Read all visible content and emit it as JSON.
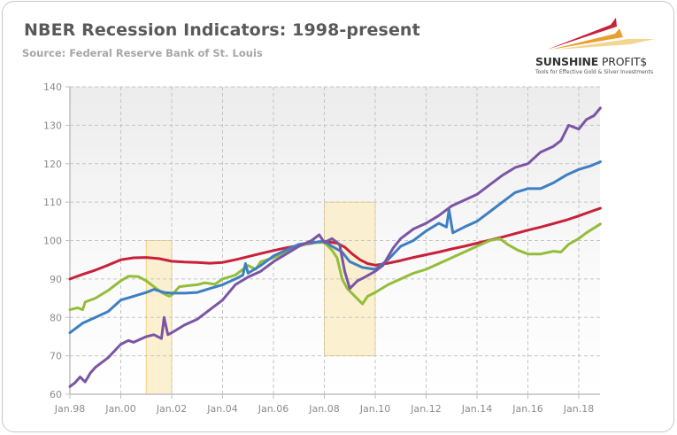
{
  "header": {
    "title": "NBER Recession Indicators: 1998-present",
    "subtitle": "Source: Federal Reserve Bank of St. Louis"
  },
  "logo": {
    "name_bold": "SUNSHINE",
    "name_light": " PROFIT$",
    "tagline": "Tools for Effective Gold & Silver Investments",
    "colors": [
      "#c8213a",
      "#e8a030",
      "#f0c870"
    ]
  },
  "chart_data": {
    "type": "line",
    "title": "NBER Recession Indicators: 1998-present",
    "xlabel": "",
    "ylabel": "",
    "ylim": [
      60,
      140
    ],
    "xlim": [
      1998.0,
      2018.85
    ],
    "yticks": [
      60,
      70,
      80,
      90,
      100,
      110,
      120,
      130,
      140
    ],
    "xticks": [
      {
        "year": 1998,
        "label": "Jan.98"
      },
      {
        "year": 2000,
        "label": "Jan.00"
      },
      {
        "year": 2002,
        "label": "Jan.02"
      },
      {
        "year": 2004,
        "label": "Jan.04"
      },
      {
        "year": 2006,
        "label": "Jan.06"
      },
      {
        "year": 2008,
        "label": "Jan.08"
      },
      {
        "year": 2010,
        "label": "Jan.10"
      },
      {
        "year": 2012,
        "label": "Jan.12"
      },
      {
        "year": 2014,
        "label": "Jan.14"
      },
      {
        "year": 2016,
        "label": "Jan.16"
      },
      {
        "year": 2018,
        "label": "Jan.18"
      }
    ],
    "grid": true,
    "legend": "none",
    "recession_shading": [
      {
        "x0": 2001.0,
        "x1": 2002.0,
        "y0": 60,
        "y1": 100,
        "color": "#fbefcc"
      },
      {
        "x0": 2008.0,
        "x1": 2010.0,
        "y0": 70,
        "y1": 110,
        "color": "#fbefcc"
      }
    ],
    "series": [
      {
        "name": "red",
        "color": "#c8213a",
        "points": [
          [
            1998.0,
            90.0
          ],
          [
            1998.5,
            91.2
          ],
          [
            1999.0,
            92.3
          ],
          [
            1999.5,
            93.6
          ],
          [
            2000.0,
            95.0
          ],
          [
            2000.5,
            95.5
          ],
          [
            2001.0,
            95.6
          ],
          [
            2001.5,
            95.3
          ],
          [
            2002.0,
            94.6
          ],
          [
            2002.5,
            94.4
          ],
          [
            2003.0,
            94.3
          ],
          [
            2003.5,
            94.1
          ],
          [
            2004.0,
            94.3
          ],
          [
            2004.5,
            95.0
          ],
          [
            2005.0,
            95.8
          ],
          [
            2005.5,
            96.6
          ],
          [
            2006.0,
            97.4
          ],
          [
            2006.5,
            98.1
          ],
          [
            2007.0,
            98.7
          ],
          [
            2007.5,
            99.3
          ],
          [
            2008.0,
            99.8
          ],
          [
            2008.5,
            99.3
          ],
          [
            2008.8,
            98.3
          ],
          [
            2009.1,
            96.5
          ],
          [
            2009.4,
            95.0
          ],
          [
            2009.7,
            94.0
          ],
          [
            2010.0,
            93.6
          ],
          [
            2010.5,
            94.1
          ],
          [
            2011.0,
            94.8
          ],
          [
            2011.5,
            95.6
          ],
          [
            2012.0,
            96.3
          ],
          [
            2012.5,
            97.0
          ],
          [
            2013.0,
            97.8
          ],
          [
            2013.5,
            98.5
          ],
          [
            2014.0,
            99.3
          ],
          [
            2014.5,
            100.1
          ],
          [
            2015.0,
            100.9
          ],
          [
            2015.5,
            101.8
          ],
          [
            2016.0,
            102.7
          ],
          [
            2016.5,
            103.5
          ],
          [
            2017.0,
            104.4
          ],
          [
            2017.5,
            105.3
          ],
          [
            2018.0,
            106.4
          ],
          [
            2018.5,
            107.6
          ],
          [
            2018.85,
            108.4
          ]
        ]
      },
      {
        "name": "green",
        "color": "#93bd3a",
        "points": [
          [
            1998.0,
            82.0
          ],
          [
            1998.3,
            82.5
          ],
          [
            1998.5,
            82.0
          ],
          [
            1998.6,
            84.0
          ],
          [
            1999.0,
            85.0
          ],
          [
            1999.5,
            87.0
          ],
          [
            2000.0,
            89.5
          ],
          [
            2000.3,
            90.7
          ],
          [
            2000.7,
            90.6
          ],
          [
            2001.0,
            89.5
          ],
          [
            2001.3,
            88.0
          ],
          [
            2001.6,
            86.5
          ],
          [
            2001.9,
            85.5
          ],
          [
            2002.0,
            85.8
          ],
          [
            2002.3,
            88.0
          ],
          [
            2002.7,
            88.3
          ],
          [
            2003.0,
            88.5
          ],
          [
            2003.3,
            89.0
          ],
          [
            2003.7,
            88.6
          ],
          [
            2004.0,
            90.0
          ],
          [
            2004.5,
            91.0
          ],
          [
            2004.8,
            92.5
          ],
          [
            2005.0,
            93.5
          ],
          [
            2005.3,
            92.5
          ],
          [
            2005.5,
            94.5
          ],
          [
            2006.0,
            95.5
          ],
          [
            2006.5,
            97.0
          ],
          [
            2007.0,
            98.5
          ],
          [
            2007.5,
            99.5
          ],
          [
            2008.0,
            99.5
          ],
          [
            2008.3,
            97.5
          ],
          [
            2008.5,
            95.5
          ],
          [
            2008.7,
            90.0
          ],
          [
            2008.9,
            87.5
          ],
          [
            2009.2,
            85.5
          ],
          [
            2009.5,
            83.5
          ],
          [
            2009.7,
            85.5
          ],
          [
            2010.0,
            86.5
          ],
          [
            2010.5,
            88.5
          ],
          [
            2011.0,
            90.0
          ],
          [
            2011.5,
            91.5
          ],
          [
            2012.0,
            92.5
          ],
          [
            2012.5,
            94.0
          ],
          [
            2013.0,
            95.5
          ],
          [
            2013.5,
            97.0
          ],
          [
            2014.0,
            98.5
          ],
          [
            2014.5,
            100.0
          ],
          [
            2014.9,
            100.5
          ],
          [
            2015.2,
            99.0
          ],
          [
            2015.6,
            97.5
          ],
          [
            2016.0,
            96.5
          ],
          [
            2016.5,
            96.5
          ],
          [
            2017.0,
            97.2
          ],
          [
            2017.3,
            97.0
          ],
          [
            2017.6,
            99.0
          ],
          [
            2018.0,
            100.5
          ],
          [
            2018.3,
            102.0
          ],
          [
            2018.85,
            104.3
          ]
        ]
      },
      {
        "name": "blue",
        "color": "#3d7fc2",
        "points": [
          [
            1998.0,
            76.0
          ],
          [
            1998.5,
            78.5
          ],
          [
            1999.0,
            80.0
          ],
          [
            1999.5,
            81.5
          ],
          [
            2000.0,
            84.5
          ],
          [
            2000.5,
            85.5
          ],
          [
            2001.0,
            86.5
          ],
          [
            2001.3,
            87.3
          ],
          [
            2001.7,
            86.5
          ],
          [
            2002.0,
            86.3
          ],
          [
            2002.5,
            86.3
          ],
          [
            2003.0,
            86.5
          ],
          [
            2003.5,
            87.5
          ],
          [
            2004.0,
            88.5
          ],
          [
            2004.5,
            90.0
          ],
          [
            2004.8,
            91.0
          ],
          [
            2004.9,
            94.0
          ],
          [
            2005.0,
            91.5
          ],
          [
            2005.5,
            93.5
          ],
          [
            2006.0,
            96.0
          ],
          [
            2006.5,
            97.5
          ],
          [
            2007.0,
            99.0
          ],
          [
            2007.5,
            99.5
          ],
          [
            2008.0,
            99.8
          ],
          [
            2008.3,
            98.5
          ],
          [
            2008.7,
            97.0
          ],
          [
            2009.0,
            94.5
          ],
          [
            2009.5,
            93.0
          ],
          [
            2010.0,
            92.5
          ],
          [
            2010.5,
            95.0
          ],
          [
            2011.0,
            98.5
          ],
          [
            2011.5,
            100.0
          ],
          [
            2012.0,
            102.5
          ],
          [
            2012.5,
            104.5
          ],
          [
            2012.8,
            103.5
          ],
          [
            2012.9,
            108.0
          ],
          [
            2013.05,
            102.0
          ],
          [
            2013.5,
            103.5
          ],
          [
            2014.0,
            105.0
          ],
          [
            2014.5,
            107.5
          ],
          [
            2015.0,
            110.0
          ],
          [
            2015.5,
            112.5
          ],
          [
            2016.0,
            113.5
          ],
          [
            2016.5,
            113.5
          ],
          [
            2017.0,
            115.0
          ],
          [
            2017.5,
            117.0
          ],
          [
            2018.0,
            118.5
          ],
          [
            2018.5,
            119.5
          ],
          [
            2018.85,
            120.5
          ]
        ]
      },
      {
        "name": "purple",
        "color": "#7b55a4",
        "points": [
          [
            1998.0,
            62.0
          ],
          [
            1998.2,
            63.0
          ],
          [
            1998.4,
            64.5
          ],
          [
            1998.6,
            63.2
          ],
          [
            1998.8,
            65.5
          ],
          [
            1999.0,
            67.0
          ],
          [
            1999.5,
            69.5
          ],
          [
            2000.0,
            73.0
          ],
          [
            2000.3,
            74.0
          ],
          [
            2000.5,
            73.5
          ],
          [
            2001.0,
            75.0
          ],
          [
            2001.3,
            75.5
          ],
          [
            2001.6,
            74.5
          ],
          [
            2001.7,
            80.0
          ],
          [
            2001.85,
            75.5
          ],
          [
            2002.0,
            76.0
          ],
          [
            2002.5,
            78.0
          ],
          [
            2003.0,
            79.5
          ],
          [
            2003.5,
            82.0
          ],
          [
            2004.0,
            84.5
          ],
          [
            2004.5,
            88.5
          ],
          [
            2005.0,
            90.5
          ],
          [
            2005.5,
            92.0
          ],
          [
            2006.0,
            94.5
          ],
          [
            2006.5,
            96.5
          ],
          [
            2007.0,
            98.5
          ],
          [
            2007.5,
            100.0
          ],
          [
            2007.8,
            101.5
          ],
          [
            2008.0,
            99.5
          ],
          [
            2008.3,
            100.5
          ],
          [
            2008.6,
            99.0
          ],
          [
            2008.8,
            92.0
          ],
          [
            2009.0,
            87.5
          ],
          [
            2009.3,
            89.5
          ],
          [
            2009.6,
            90.5
          ],
          [
            2010.0,
            92.0
          ],
          [
            2010.3,
            93.5
          ],
          [
            2010.7,
            98.0
          ],
          [
            2011.0,
            100.5
          ],
          [
            2011.5,
            103.0
          ],
          [
            2012.0,
            104.5
          ],
          [
            2012.5,
            106.5
          ],
          [
            2013.0,
            109.0
          ],
          [
            2013.5,
            110.5
          ],
          [
            2014.0,
            112.0
          ],
          [
            2014.5,
            114.5
          ],
          [
            2015.0,
            117.0
          ],
          [
            2015.5,
            119.0
          ],
          [
            2016.0,
            120.0
          ],
          [
            2016.5,
            123.0
          ],
          [
            2017.0,
            124.5
          ],
          [
            2017.3,
            126.0
          ],
          [
            2017.6,
            130.0
          ],
          [
            2018.0,
            129.0
          ],
          [
            2018.3,
            131.5
          ],
          [
            2018.6,
            132.5
          ],
          [
            2018.85,
            134.5
          ]
        ]
      }
    ]
  }
}
